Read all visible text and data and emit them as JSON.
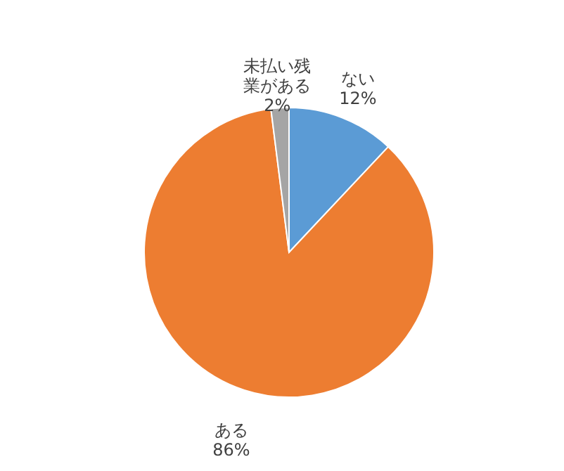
{
  "chart_data": {
    "type": "pie",
    "categories": [
      "ない",
      "ある",
      "未払い残業がある"
    ],
    "values": [
      12,
      86,
      2
    ],
    "value_labels": [
      "12%",
      "86%",
      "2%"
    ],
    "colors": [
      "#5b9bd5",
      "#ed7d31",
      "#a5a5a5"
    ],
    "legend": false
  }
}
